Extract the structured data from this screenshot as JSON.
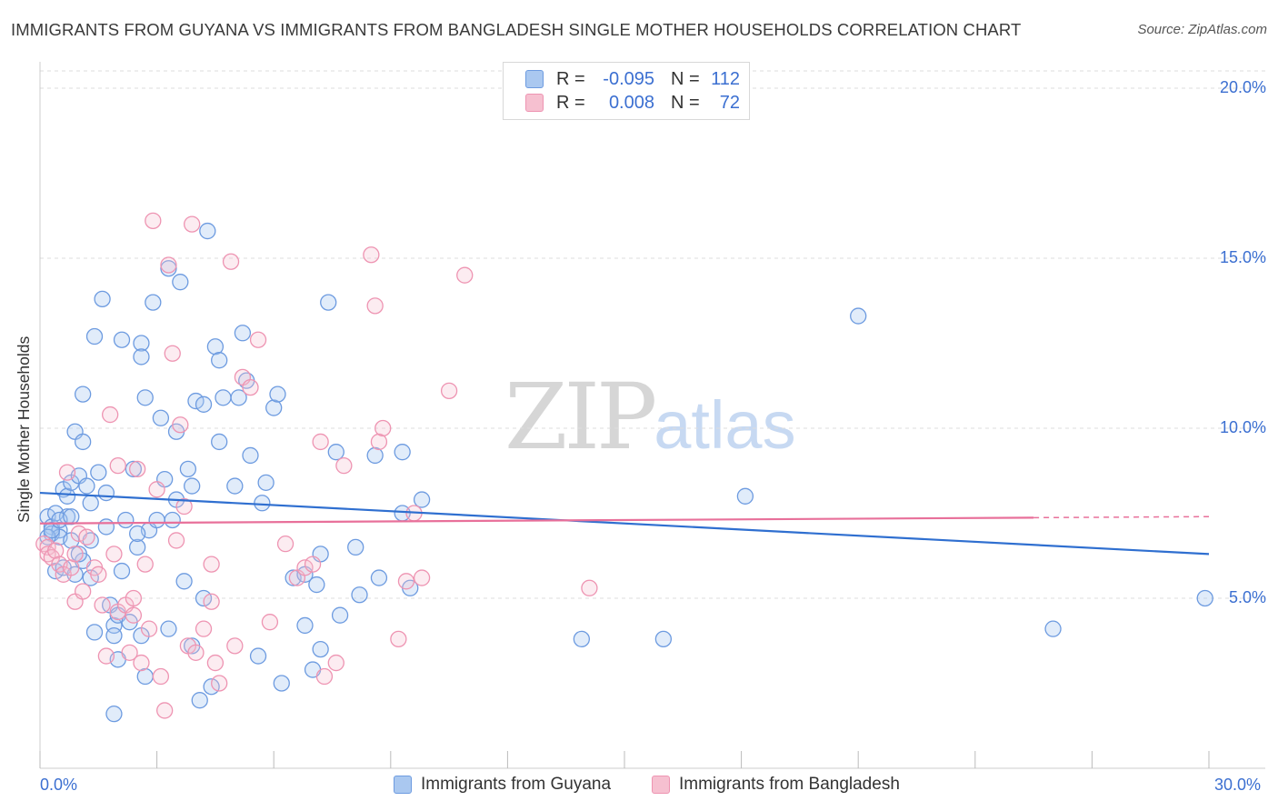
{
  "title": "IMMIGRANTS FROM GUYANA VS IMMIGRANTS FROM BANGLADESH SINGLE MOTHER HOUSEHOLDS CORRELATION CHART",
  "source": "Source: ZipAtlas.com",
  "watermark": {
    "zip": "ZIP",
    "atlas": "atlas"
  },
  "legend": {
    "rows": [
      {
        "r_label": "R =",
        "r_value": "-0.095",
        "n_label": "N =",
        "n_value": "112"
      },
      {
        "r_label": "R =",
        "r_value": "0.008",
        "n_label": "N =",
        "n_value": "72"
      }
    ]
  },
  "bottom_legend": {
    "guyana": "Immigrants from Guyana",
    "bangladesh": "Immigrants from Bangladesh"
  },
  "colors": {
    "guyana_fill": "#aac8f0",
    "guyana_stroke": "#6d9be0",
    "guyana_line": "#2f6fd0",
    "bangladesh_fill": "#f6c0d0",
    "bangladesh_stroke": "#ee94b2",
    "bangladesh_line": "#e8709a",
    "axis_text": "#3b6fd1",
    "grid": "#dddddd"
  },
  "chart_data": {
    "type": "scatter",
    "title": "IMMIGRANTS FROM GUYANA VS IMMIGRANTS FROM BANGLADESH SINGLE MOTHER HOUSEHOLDS CORRELATION CHART",
    "xlabel": "",
    "ylabel": "Single Mother Households",
    "xlim": [
      0,
      30
    ],
    "ylim": [
      0,
      20
    ],
    "x_tick_labels": [
      "0.0%",
      "30.0%"
    ],
    "y_tick_labels": [
      "5.0%",
      "10.0%",
      "15.0%",
      "20.0%"
    ],
    "y_ticks": [
      5,
      10,
      15,
      20
    ],
    "grid": true,
    "legend_position": "top-center",
    "series": [
      {
        "name": "Immigrants from Guyana",
        "R": -0.095,
        "N": 112,
        "trend": {
          "x": [
            0,
            30
          ],
          "y": [
            8.1,
            6.3
          ],
          "dashed_after": null
        },
        "points": [
          [
            0.2,
            7.4
          ],
          [
            0.3,
            7.1
          ],
          [
            0.3,
            6.9
          ],
          [
            0.4,
            7.5
          ],
          [
            0.5,
            7.0
          ],
          [
            0.5,
            6.8
          ],
          [
            0.6,
            8.2
          ],
          [
            0.7,
            8.0
          ],
          [
            0.7,
            7.4
          ],
          [
            0.8,
            8.4
          ],
          [
            0.9,
            9.9
          ],
          [
            1.0,
            8.6
          ],
          [
            1.1,
            9.6
          ],
          [
            1.1,
            11.0
          ],
          [
            1.2,
            8.3
          ],
          [
            0.4,
            5.8
          ],
          [
            0.6,
            5.9
          ],
          [
            0.8,
            6.7
          ],
          [
            1.1,
            6.1
          ],
          [
            1.3,
            6.7
          ],
          [
            1.3,
            5.6
          ],
          [
            1.4,
            12.7
          ],
          [
            1.5,
            8.7
          ],
          [
            1.6,
            13.8
          ],
          [
            1.7,
            7.1
          ],
          [
            1.7,
            8.1
          ],
          [
            1.8,
            4.8
          ],
          [
            1.9,
            4.2
          ],
          [
            1.9,
            3.9
          ],
          [
            2.0,
            4.5
          ],
          [
            2.0,
            3.2
          ],
          [
            2.1,
            12.6
          ],
          [
            2.1,
            5.8
          ],
          [
            2.2,
            7.3
          ],
          [
            2.3,
            4.3
          ],
          [
            2.4,
            8.8
          ],
          [
            2.5,
            6.5
          ],
          [
            2.6,
            12.5
          ],
          [
            2.6,
            12.1
          ],
          [
            2.7,
            10.9
          ],
          [
            2.8,
            7.0
          ],
          [
            2.9,
            13.7
          ],
          [
            3.0,
            7.3
          ],
          [
            3.1,
            10.3
          ],
          [
            3.2,
            8.5
          ],
          [
            3.3,
            4.1
          ],
          [
            3.3,
            14.7
          ],
          [
            3.4,
            7.3
          ],
          [
            3.5,
            9.9
          ],
          [
            3.5,
            7.9
          ],
          [
            3.6,
            14.3
          ],
          [
            3.7,
            5.5
          ],
          [
            3.8,
            8.8
          ],
          [
            3.9,
            8.3
          ],
          [
            4.0,
            10.8
          ],
          [
            4.1,
            2.0
          ],
          [
            4.2,
            5.0
          ],
          [
            4.2,
            10.7
          ],
          [
            4.3,
            15.8
          ],
          [
            4.4,
            2.4
          ],
          [
            4.5,
            12.4
          ],
          [
            4.6,
            9.6
          ],
          [
            4.6,
            12.0
          ],
          [
            4.7,
            10.9
          ],
          [
            5.0,
            8.3
          ],
          [
            5.1,
            10.9
          ],
          [
            5.2,
            12.8
          ],
          [
            5.3,
            11.4
          ],
          [
            5.4,
            9.2
          ],
          [
            5.6,
            3.3
          ],
          [
            5.7,
            7.8
          ],
          [
            5.8,
            8.4
          ],
          [
            6.0,
            10.6
          ],
          [
            6.1,
            11.0
          ],
          [
            6.2,
            2.5
          ],
          [
            6.5,
            5.6
          ],
          [
            6.8,
            5.7
          ],
          [
            7.0,
            2.9
          ],
          [
            7.1,
            5.4
          ],
          [
            7.2,
            6.3
          ],
          [
            7.4,
            13.7
          ],
          [
            7.6,
            9.3
          ],
          [
            7.7,
            4.5
          ],
          [
            8.1,
            6.5
          ],
          [
            8.2,
            5.1
          ],
          [
            8.6,
            9.2
          ],
          [
            8.7,
            5.6
          ],
          [
            9.3,
            9.3
          ],
          [
            9.3,
            7.5
          ],
          [
            9.5,
            5.3
          ],
          [
            9.8,
            7.9
          ],
          [
            0.2,
            6.8
          ],
          [
            0.3,
            7.0
          ],
          [
            0.5,
            7.3
          ],
          [
            0.8,
            7.4
          ],
          [
            2.6,
            3.9
          ],
          [
            1.9,
            1.6
          ],
          [
            13.9,
            3.8
          ],
          [
            16.0,
            3.8
          ],
          [
            18.1,
            8.0
          ],
          [
            21.0,
            13.3
          ],
          [
            26.0,
            4.1
          ],
          [
            29.9,
            5.0
          ],
          [
            3.9,
            3.6
          ],
          [
            1.4,
            4.0
          ],
          [
            2.7,
            2.7
          ],
          [
            2.5,
            6.9
          ],
          [
            1.0,
            6.3
          ],
          [
            0.9,
            5.7
          ],
          [
            6.8,
            4.2
          ],
          [
            7.2,
            3.5
          ],
          [
            1.3,
            7.8
          ]
        ]
      },
      {
        "name": "Immigrants from Bangladesh",
        "R": 0.008,
        "N": 72,
        "trend": {
          "x": [
            0,
            30
          ],
          "y": [
            7.2,
            7.4
          ],
          "dashed_after": 25.5
        },
        "points": [
          [
            0.1,
            6.6
          ],
          [
            0.2,
            6.5
          ],
          [
            0.2,
            6.3
          ],
          [
            0.3,
            6.2
          ],
          [
            0.4,
            6.4
          ],
          [
            0.5,
            6.0
          ],
          [
            0.6,
            5.7
          ],
          [
            0.7,
            8.7
          ],
          [
            0.8,
            5.9
          ],
          [
            0.9,
            6.3
          ],
          [
            0.9,
            4.9
          ],
          [
            1.0,
            6.9
          ],
          [
            1.1,
            5.2
          ],
          [
            1.2,
            6.8
          ],
          [
            1.4,
            5.9
          ],
          [
            1.5,
            5.7
          ],
          [
            1.6,
            4.8
          ],
          [
            1.7,
            3.3
          ],
          [
            1.8,
            10.4
          ],
          [
            1.9,
            6.3
          ],
          [
            2.0,
            4.6
          ],
          [
            2.0,
            8.9
          ],
          [
            2.2,
            4.8
          ],
          [
            2.3,
            3.4
          ],
          [
            2.4,
            4.5
          ],
          [
            2.4,
            5.0
          ],
          [
            2.5,
            8.8
          ],
          [
            2.6,
            3.1
          ],
          [
            2.7,
            6.0
          ],
          [
            2.8,
            4.1
          ],
          [
            2.9,
            16.1
          ],
          [
            3.0,
            8.2
          ],
          [
            3.1,
            2.7
          ],
          [
            3.2,
            1.7
          ],
          [
            3.3,
            14.8
          ],
          [
            3.4,
            12.2
          ],
          [
            3.5,
            6.7
          ],
          [
            3.6,
            10.1
          ],
          [
            3.7,
            7.7
          ],
          [
            3.8,
            3.6
          ],
          [
            3.9,
            16.0
          ],
          [
            4.0,
            3.4
          ],
          [
            4.2,
            4.1
          ],
          [
            4.4,
            4.9
          ],
          [
            4.4,
            6.0
          ],
          [
            4.5,
            3.1
          ],
          [
            4.6,
            2.5
          ],
          [
            4.9,
            14.9
          ],
          [
            5.0,
            3.6
          ],
          [
            5.2,
            11.5
          ],
          [
            5.4,
            11.2
          ],
          [
            5.6,
            12.6
          ],
          [
            5.9,
            4.3
          ],
          [
            6.3,
            6.6
          ],
          [
            6.6,
            5.6
          ],
          [
            6.8,
            5.9
          ],
          [
            7.0,
            6.0
          ],
          [
            7.2,
            9.6
          ],
          [
            7.3,
            2.7
          ],
          [
            7.6,
            3.1
          ],
          [
            7.8,
            8.9
          ],
          [
            8.5,
            15.1
          ],
          [
            8.6,
            13.6
          ],
          [
            8.7,
            9.6
          ],
          [
            8.8,
            10.0
          ],
          [
            9.2,
            3.8
          ],
          [
            9.4,
            5.5
          ],
          [
            9.6,
            7.5
          ],
          [
            9.8,
            5.6
          ],
          [
            10.5,
            11.1
          ],
          [
            10.9,
            14.5
          ],
          [
            14.1,
            5.3
          ]
        ]
      }
    ]
  }
}
